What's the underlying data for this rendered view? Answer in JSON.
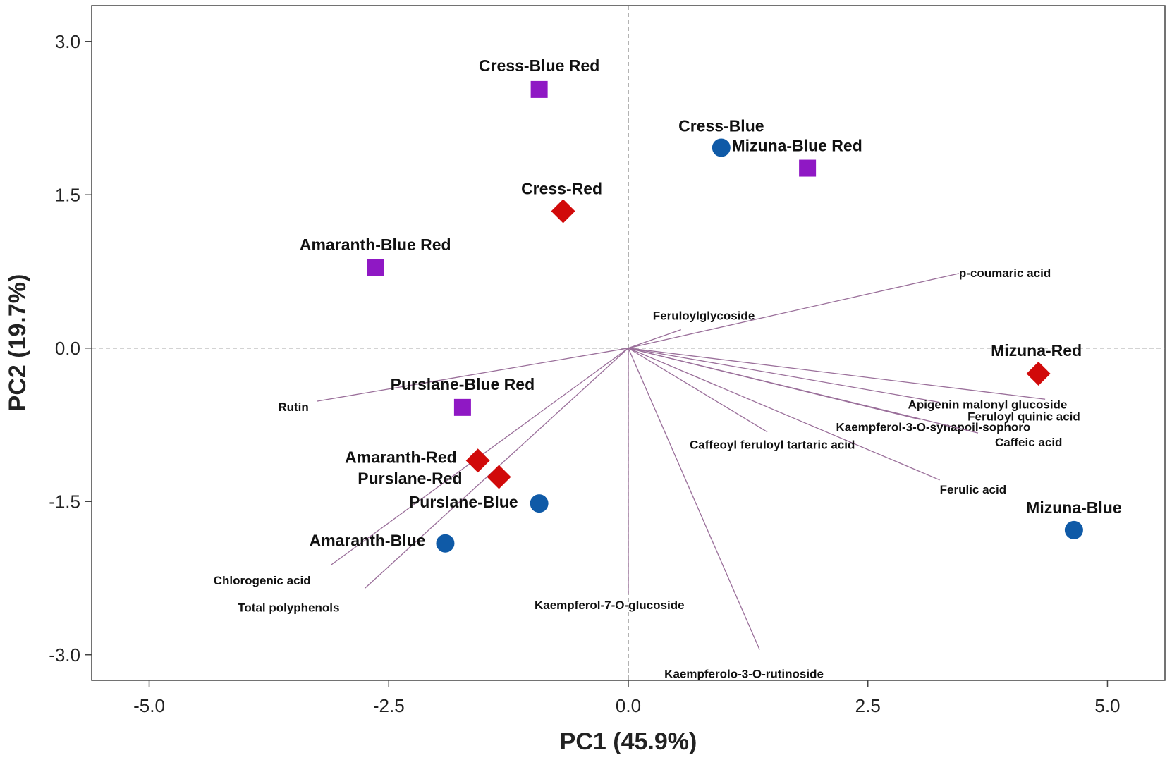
{
  "chart_data": {
    "type": "scatter",
    "subtype": "pca-biplot",
    "xlabel": "PC1 (45.9%)",
    "ylabel": "PC2 (19.7%)",
    "xlim": [
      -5.6,
      5.6
    ],
    "ylim": [
      -3.25,
      3.35
    ],
    "xticks": [
      -5.0,
      -2.5,
      0.0,
      2.5,
      5.0
    ],
    "xtick_labels": [
      "-5.0",
      "-2.5",
      "0.0",
      "2.5",
      "5.0"
    ],
    "yticks": [
      -3.0,
      -1.5,
      0.0,
      1.5,
      3.0
    ],
    "ytick_labels": [
      "-3.0",
      "-1.5",
      "0.0",
      "1.5",
      "3.0"
    ],
    "reference_lines": {
      "x": 0,
      "y": 0,
      "style": "dashed"
    },
    "colors": {
      "blue": "#0f5aa7",
      "red": "#d10a0a",
      "blue_red": "#8f18c4",
      "loading": "#9a6f9a"
    },
    "series": [
      {
        "name": "Blue",
        "marker": "circle",
        "color": "#0f5aa7",
        "points": [
          {
            "label": "Cress-Blue",
            "x": 0.97,
            "y": 1.96
          },
          {
            "label": "Purslane-Blue",
            "x": -0.93,
            "y": -1.52
          },
          {
            "label": "Amaranth-Blue",
            "x": -1.91,
            "y": -1.91
          },
          {
            "label": "Mizuna-Blue",
            "x": 4.65,
            "y": -1.78
          }
        ]
      },
      {
        "name": "Red",
        "marker": "diamond",
        "color": "#d10a0a",
        "points": [
          {
            "label": "Cress-Red",
            "x": -0.68,
            "y": 1.34
          },
          {
            "label": "Amaranth-Red",
            "x": -1.57,
            "y": -1.1
          },
          {
            "label": "Purslane-Red",
            "x": -1.35,
            "y": -1.26
          },
          {
            "label": "Mizuna-Red",
            "x": 4.28,
            "y": -0.25
          }
        ]
      },
      {
        "name": "Blue Red",
        "marker": "square",
        "color": "#8f18c4",
        "points": [
          {
            "label": "Cress-Blue Red",
            "x": -0.93,
            "y": 2.53
          },
          {
            "label": "Mizuna-Blue Red",
            "x": 1.87,
            "y": 1.76
          },
          {
            "label": "Amaranth-Blue Red",
            "x": -2.64,
            "y": 0.79
          },
          {
            "label": "Purslane-Blue Red",
            "x": -1.73,
            "y": -0.58
          }
        ]
      }
    ],
    "loadings": [
      {
        "label": "p-coumaric acid",
        "x": 3.45,
        "y": 0.73
      },
      {
        "label": "Feruloylglycoside",
        "x": 0.55,
        "y": 0.18
      },
      {
        "label": "Feruloyl quinic acid",
        "x": 4.35,
        "y": -0.5
      },
      {
        "label": "Apigenin malonyl glucoside",
        "x": 3.25,
        "y": -0.53
      },
      {
        "label": "Kaempferol-3-O-synapoil-sophoro",
        "x": 3.05,
        "y": -0.7
      },
      {
        "label": "Caffeic acid",
        "x": 3.65,
        "y": -0.83
      },
      {
        "label": "Ferulic acid",
        "x": 3.25,
        "y": -1.29
      },
      {
        "label": "Caffeoyl feruloyl tartaric acid",
        "x": 1.45,
        "y": -0.82
      },
      {
        "label": "Kaempferol-7-O-glucoside",
        "x": 0.0,
        "y": -2.4
      },
      {
        "label": "Kaempferolo-3-O-rutinoside",
        "x": 1.37,
        "y": -2.95
      },
      {
        "label": "Rutin",
        "x": -3.25,
        "y": -0.52
      },
      {
        "label": "Chlorogenic acid",
        "x": -3.1,
        "y": -2.12
      },
      {
        "label": "Total polyphenols",
        "x": -2.75,
        "y": -2.35
      }
    ]
  }
}
